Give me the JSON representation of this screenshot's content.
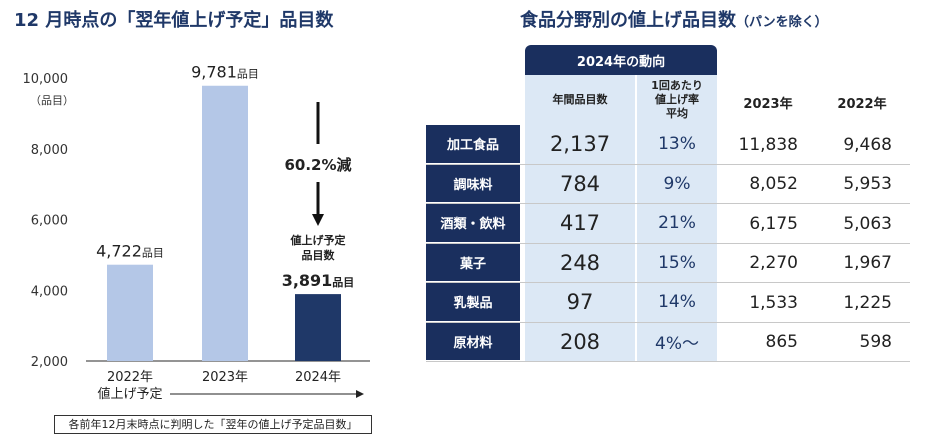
{
  "left": {
    "title": "12 月時点の「翌年値上げ予定」品目数",
    "y_unit": "（品目）",
    "x_arrow_label": "値上げ予定",
    "change_label": "60.2%減",
    "annotation_2024": [
      "値上げ予定",
      "品目数"
    ],
    "note": "各前年12月末時点に判明した「翌年の値上げ予定品目数」"
  },
  "right": {
    "title": "食品分野別の値上げ品目数",
    "title_suffix": "（パンを除く）",
    "header_2024": "2024年の動向",
    "col_annual": "年間品目数",
    "col_rate": [
      "1回あたり",
      "値上げ率",
      "平均"
    ],
    "col_2023": "2023年",
    "col_2022": "2022年",
    "rows": [
      {
        "category": "加工食品",
        "items_2024": "2,137",
        "rate": "13%",
        "y2023": "11,838",
        "y2022": "9,468"
      },
      {
        "category": "調味料",
        "items_2024": "784",
        "rate": "9%",
        "y2023": "8,052",
        "y2022": "5,953"
      },
      {
        "category": "酒類・飲料",
        "items_2024": "417",
        "rate": "21%",
        "y2023": "6,175",
        "y2022": "5,063"
      },
      {
        "category": "菓子",
        "items_2024": "248",
        "rate": "15%",
        "y2023": "2,270",
        "y2022": "1,967"
      },
      {
        "category": "乳製品",
        "items_2024": "97",
        "rate": "14%",
        "y2023": "1,533",
        "y2022": "1,225"
      },
      {
        "category": "原材料",
        "items_2024": "208",
        "rate": "4%〜",
        "y2023": "865",
        "y2022": "598"
      }
    ]
  },
  "chart_data": [
    {
      "type": "bar",
      "title": "12 月時点の「翌年値上げ予定」品目数",
      "categories": [
        "2022年",
        "2023年",
        "2024年"
      ],
      "values": [
        4722,
        9781,
        3891
      ],
      "value_labels": [
        "4,722",
        "9,781",
        "3,891"
      ],
      "value_suffix": "品目",
      "ylabel": "（品目）",
      "xlabel": "値上げ予定",
      "ylim": [
        2000,
        10000
      ],
      "yticks": [
        "2,000",
        "4,000",
        "6,000",
        "8,000",
        "10,000"
      ],
      "ytick_values": [
        2000,
        4000,
        6000,
        8000,
        10000
      ],
      "colors": [
        "#b4c7e7",
        "#b4c7e7",
        "#1f3868"
      ],
      "grid": false
    },
    {
      "type": "table",
      "title": "食品分野別の値上げ品目数（パンを除く）",
      "columns": [
        "年間品目数",
        "1回あたり値上げ率平均",
        "2023年",
        "2022年"
      ],
      "rows": [
        "加工食品",
        "調味料",
        "酒類・飲料",
        "菓子",
        "乳製品",
        "原材料"
      ]
    }
  ]
}
